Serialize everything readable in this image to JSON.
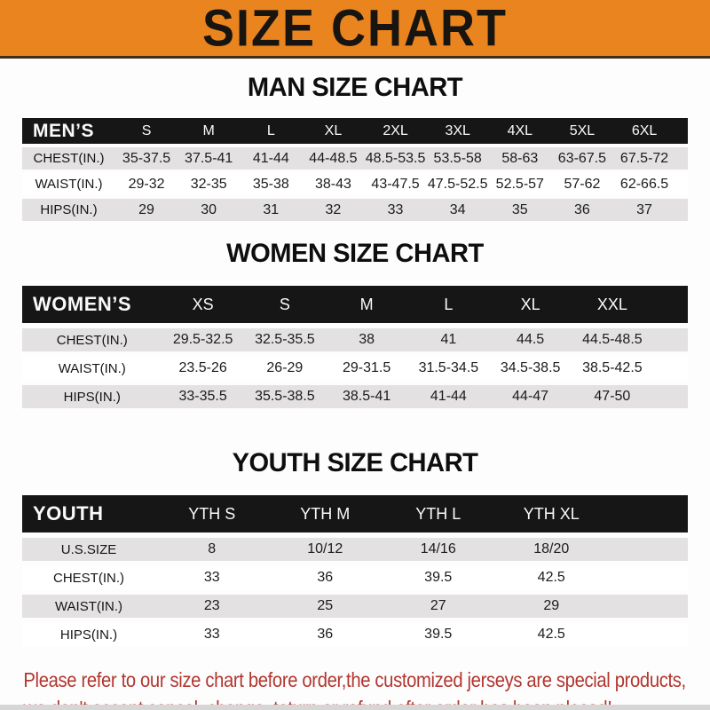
{
  "banner": {
    "title": "SIZE CHART"
  },
  "sections": [
    {
      "key": "men",
      "heading": "MAN SIZE CHART",
      "header_label": "MEN’S",
      "columns": [
        "S",
        "M",
        "L",
        "XL",
        "2XL",
        "3XL",
        "4XL",
        "5XL",
        "6XL"
      ],
      "rows": [
        {
          "label": "CHEST(IN.)",
          "values": [
            "35-37.5",
            "37.5-41",
            "41-44",
            "44-48.5",
            "48.5-53.5",
            "53.5-58",
            "58-63",
            "63-67.5",
            "67.5-72"
          ]
        },
        {
          "label": "WAIST(IN.)",
          "values": [
            "29-32",
            "32-35",
            "35-38",
            "38-43",
            "43-47.5",
            "47.5-52.5",
            "52.5-57",
            "57-62",
            "62-66.5"
          ]
        },
        {
          "label": "HIPS(IN.)",
          "values": [
            "29",
            "30",
            "31",
            "32",
            "33",
            "34",
            "35",
            "36",
            "37"
          ]
        }
      ]
    },
    {
      "key": "women",
      "heading": "WOMEN SIZE CHART",
      "header_label": "WOMEN’S",
      "columns": [
        "XS",
        "S",
        "M",
        "L",
        "XL",
        "XXL"
      ],
      "rows": [
        {
          "label": "CHEST(IN.)",
          "values": [
            "29.5-32.5",
            "32.5-35.5",
            "38",
            "41",
            "44.5",
            "44.5-48.5"
          ]
        },
        {
          "label": "WAIST(IN.)",
          "values": [
            "23.5-26",
            "26-29",
            "29-31.5",
            "31.5-34.5",
            "34.5-38.5",
            "38.5-42.5"
          ]
        },
        {
          "label": "HIPS(IN.)",
          "values": [
            "33-35.5",
            "35.5-38.5",
            "38.5-41",
            "41-44",
            "44-47",
            "47-50"
          ]
        }
      ]
    },
    {
      "key": "youth",
      "heading": "YOUTH SIZE CHART",
      "header_label": "YOUTH",
      "columns": [
        "YTH S",
        "YTH M",
        "YTH L",
        "YTH XL"
      ],
      "rows": [
        {
          "label": "U.S.SIZE",
          "values": [
            "8",
            "10/12",
            "14/16",
            "18/20"
          ]
        },
        {
          "label": "CHEST(IN.)",
          "values": [
            "33",
            "36",
            "39.5",
            "42.5"
          ]
        },
        {
          "label": "WAIST(IN.)",
          "values": [
            "23",
            "25",
            "27",
            "29"
          ]
        },
        {
          "label": "HIPS(IN.)",
          "values": [
            "33",
            "36",
            "39.5",
            "42.5"
          ]
        }
      ]
    }
  ],
  "footer": {
    "line1": "Please refer to our size chart before order,the customized jerseys are special products,",
    "line2": "we don't accept cancel, change, teturn or refund after order has been placed!"
  },
  "colors": {
    "banner_bg": "#EA841F",
    "header_bg": "#161616",
    "row_stripe": "#E3E1E1",
    "note_red": "#B2362F"
  }
}
